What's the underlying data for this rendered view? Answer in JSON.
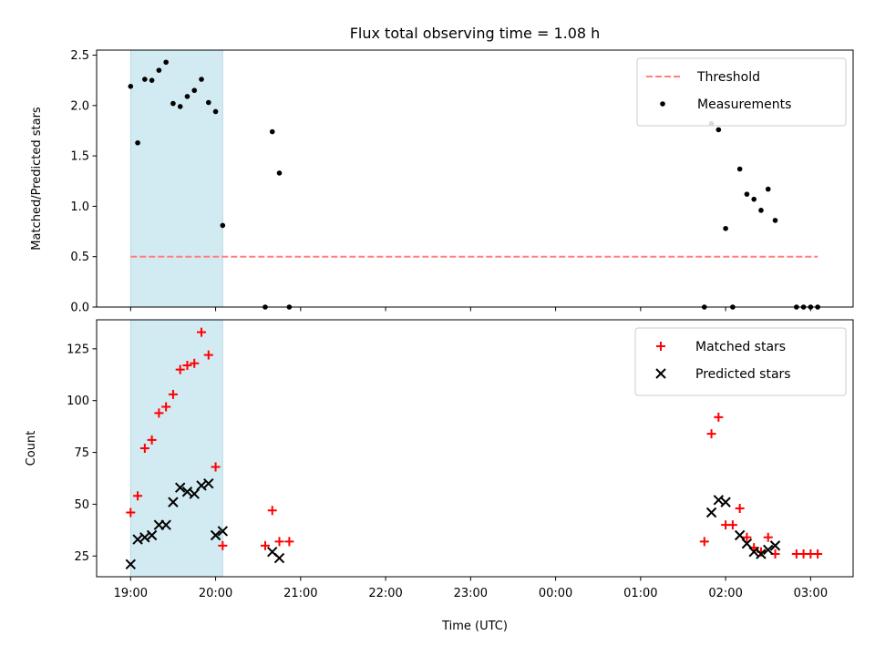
{
  "figure": {
    "title": "Flux total observing time = 1.08 h",
    "xlabel": "Time (UTC)"
  },
  "colors": {
    "shade": "#add8e6",
    "threshold": "#ff7f7f",
    "measurements": "#000000",
    "matched": "#ff0000",
    "predicted": "#000000"
  },
  "chart_data": [
    {
      "type": "scatter",
      "panel": "top",
      "ylabel": "Matched/Predicted stars",
      "xlim": [
        "18:36",
        "03:30"
      ],
      "ylim": [
        0,
        2.55
      ],
      "x_ticks": [
        "19:00",
        "20:00",
        "21:00",
        "22:00",
        "23:00",
        "00:00",
        "01:00",
        "02:00",
        "03:00"
      ],
      "y_ticks": [
        "0.0",
        "0.5",
        "1.0",
        "1.5",
        "2.0",
        "2.5"
      ],
      "y_tick_values": [
        0,
        0.5,
        1.0,
        1.5,
        2.0,
        2.5
      ],
      "shaded_interval": [
        "19:00",
        "20:05"
      ],
      "legend_position": "top-right",
      "threshold": {
        "name": "Threshold",
        "y": 0.5,
        "x_range": [
          "19:00",
          "03:05"
        ],
        "style": "dashed"
      },
      "series": [
        {
          "name": "Measurements",
          "marker": "dot",
          "points": [
            [
              "19:00",
              2.19
            ],
            [
              "19:05",
              1.63
            ],
            [
              "19:10",
              2.26
            ],
            [
              "19:15",
              2.25
            ],
            [
              "19:20",
              2.35
            ],
            [
              "19:25",
              2.43
            ],
            [
              "19:30",
              2.02
            ],
            [
              "19:35",
              1.99
            ],
            [
              "19:40",
              2.09
            ],
            [
              "19:45",
              2.15
            ],
            [
              "19:50",
              2.26
            ],
            [
              "19:55",
              2.03
            ],
            [
              "20:00",
              1.94
            ],
            [
              "20:05",
              0.81
            ],
            [
              "20:35",
              0.0
            ],
            [
              "20:40",
              1.74
            ],
            [
              "20:45",
              1.33
            ],
            [
              "20:52",
              0.0
            ],
            [
              "01:45",
              0.0
            ],
            [
              "01:50",
              1.82
            ],
            [
              "01:55",
              1.76
            ],
            [
              "02:00",
              0.78
            ],
            [
              "02:05",
              0.0
            ],
            [
              "02:10",
              1.37
            ],
            [
              "02:15",
              1.12
            ],
            [
              "02:20",
              1.07
            ],
            [
              "02:25",
              0.96
            ],
            [
              "02:30",
              1.17
            ],
            [
              "02:35",
              0.86
            ],
            [
              "02:50",
              0.0
            ],
            [
              "02:55",
              0.0
            ],
            [
              "03:00",
              0.0
            ],
            [
              "03:05",
              0.0
            ]
          ]
        }
      ]
    },
    {
      "type": "scatter",
      "panel": "bottom",
      "ylabel": "Count",
      "xlim": [
        "18:36",
        "03:30"
      ],
      "ylim": [
        15,
        139
      ],
      "x_ticks": [
        "19:00",
        "20:00",
        "21:00",
        "22:00",
        "23:00",
        "00:00",
        "01:00",
        "02:00",
        "03:00"
      ],
      "y_ticks": [
        "25",
        "50",
        "75",
        "100",
        "125"
      ],
      "y_tick_values": [
        25,
        50,
        75,
        100,
        125
      ],
      "shaded_interval": [
        "19:00",
        "20:05"
      ],
      "legend_position": "top-right",
      "series": [
        {
          "name": "Matched stars",
          "marker": "plus",
          "points": [
            [
              "19:00",
              46
            ],
            [
              "19:05",
              54
            ],
            [
              "19:10",
              77
            ],
            [
              "19:15",
              81
            ],
            [
              "19:20",
              94
            ],
            [
              "19:25",
              97
            ],
            [
              "19:30",
              103
            ],
            [
              "19:35",
              115
            ],
            [
              "19:40",
              117
            ],
            [
              "19:45",
              118
            ],
            [
              "19:50",
              133
            ],
            [
              "19:55",
              122
            ],
            [
              "20:00",
              68
            ],
            [
              "20:05",
              30
            ],
            [
              "20:35",
              30
            ],
            [
              "20:40",
              47
            ],
            [
              "20:45",
              32
            ],
            [
              "20:52",
              32
            ],
            [
              "01:45",
              32
            ],
            [
              "01:50",
              84
            ],
            [
              "01:55",
              92
            ],
            [
              "02:00",
              40
            ],
            [
              "02:05",
              40
            ],
            [
              "02:10",
              48
            ],
            [
              "02:15",
              34
            ],
            [
              "02:20",
              29
            ],
            [
              "02:25",
              27
            ],
            [
              "02:30",
              34
            ],
            [
              "02:35",
              26
            ],
            [
              "02:50",
              26
            ],
            [
              "02:55",
              26
            ],
            [
              "03:00",
              26
            ],
            [
              "03:05",
              26
            ]
          ]
        },
        {
          "name": "Predicted stars",
          "marker": "x",
          "points": [
            [
              "19:00",
              21
            ],
            [
              "19:05",
              33
            ],
            [
              "19:10",
              34
            ],
            [
              "19:15",
              35
            ],
            [
              "19:20",
              40
            ],
            [
              "19:25",
              40
            ],
            [
              "19:30",
              51
            ],
            [
              "19:35",
              58
            ],
            [
              "19:40",
              56
            ],
            [
              "19:45",
              55
            ],
            [
              "19:50",
              59
            ],
            [
              "19:55",
              60
            ],
            [
              "20:00",
              35
            ],
            [
              "20:05",
              37
            ],
            [
              "20:40",
              27
            ],
            [
              "20:45",
              24
            ],
            [
              "01:50",
              46
            ],
            [
              "01:55",
              52
            ],
            [
              "02:00",
              51
            ],
            [
              "02:10",
              35
            ],
            [
              "02:15",
              31
            ],
            [
              "02:20",
              27
            ],
            [
              "02:25",
              26
            ],
            [
              "02:30",
              28
            ],
            [
              "02:35",
              30
            ]
          ]
        }
      ]
    }
  ]
}
